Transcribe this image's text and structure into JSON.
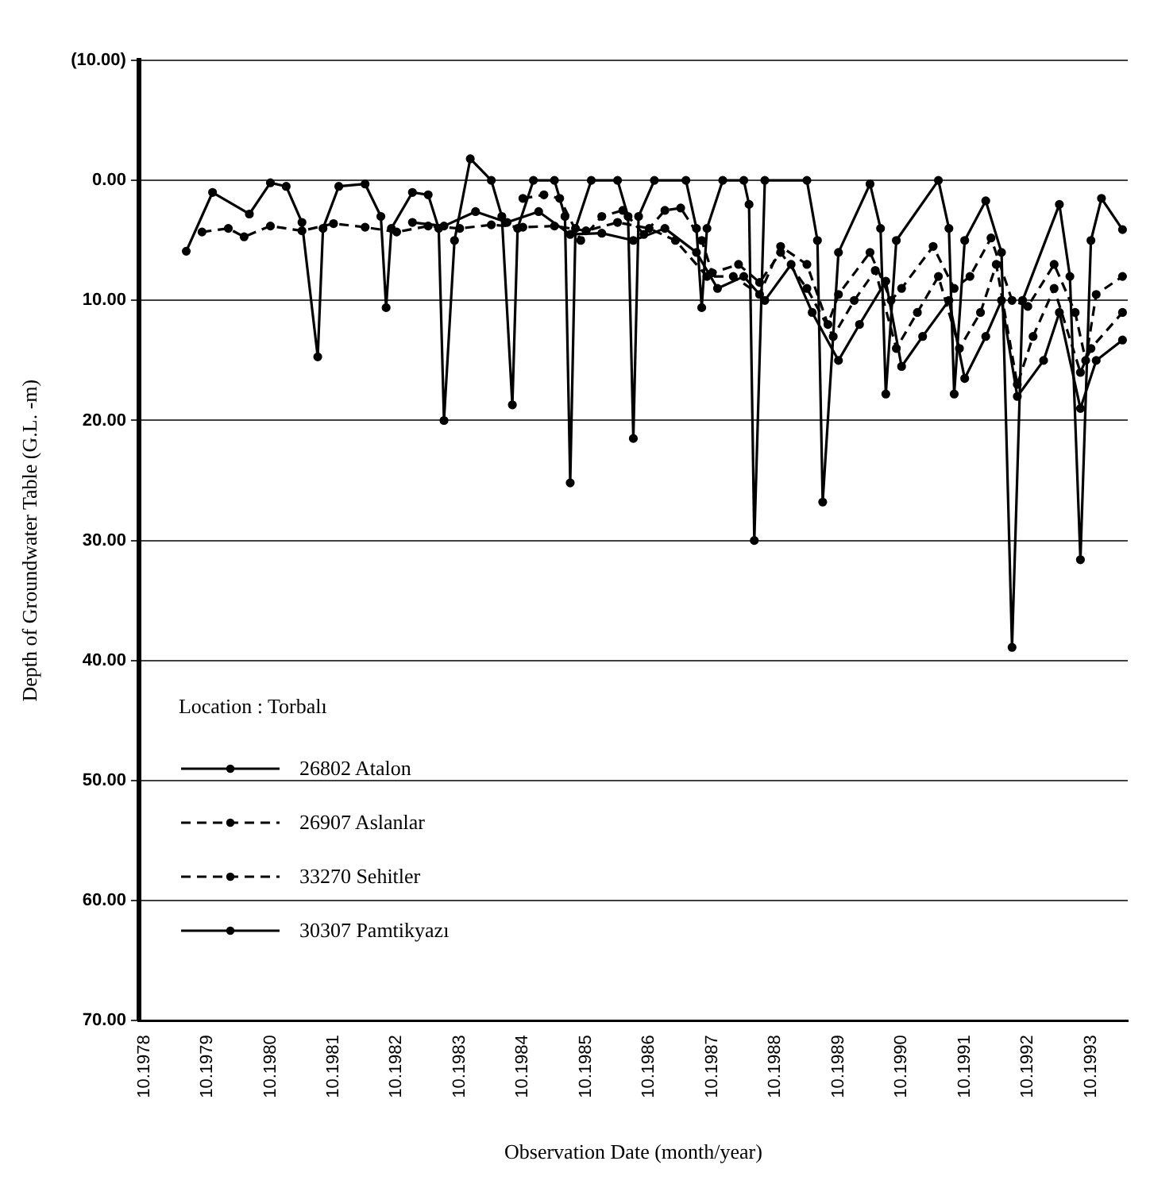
{
  "chart_data": {
    "type": "line",
    "xlabel": "Observation Date (month/year)",
    "ylabel": "Depth of Groundwater Table (G.L. -m)",
    "legend_title": "Location : Torbalı",
    "xlim": [
      "1978-09",
      "1994-05"
    ],
    "xticks": [
      {
        "value": "1978-10",
        "label": "10.1978"
      },
      {
        "value": "1979-10",
        "label": "10.1979"
      },
      {
        "value": "1980-10",
        "label": "10.1980"
      },
      {
        "value": "1981-10",
        "label": "10.1981"
      },
      {
        "value": "1982-10",
        "label": "10.1982"
      },
      {
        "value": "1983-10",
        "label": "10.1983"
      },
      {
        "value": "1984-10",
        "label": "10.1984"
      },
      {
        "value": "1985-10",
        "label": "10.1985"
      },
      {
        "value": "1986-10",
        "label": "10.1986"
      },
      {
        "value": "1987-10",
        "label": "10.1987"
      },
      {
        "value": "1988-10",
        "label": "10.1988"
      },
      {
        "value": "1989-10",
        "label": "10.1989"
      },
      {
        "value": "1990-10",
        "label": "10.1990"
      },
      {
        "value": "1991-10",
        "label": "10.1991"
      },
      {
        "value": "1992-10",
        "label": "10.1992"
      },
      {
        "value": "1993-10",
        "label": "10.1993"
      }
    ],
    "ylim": [
      70,
      -10
    ],
    "yticks": [
      {
        "value": -10,
        "label": "(10.00)"
      },
      {
        "value": 0,
        "label": "0.00"
      },
      {
        "value": 10,
        "label": "10.00"
      },
      {
        "value": 20,
        "label": "20.00"
      },
      {
        "value": 30,
        "label": "30.00"
      },
      {
        "value": 40,
        "label": "40.00"
      },
      {
        "value": 50,
        "label": "50.00"
      },
      {
        "value": 60,
        "label": "60.00"
      },
      {
        "value": 70,
        "label": "70.00"
      }
    ],
    "grid": "y",
    "legend": "bottom left",
    "marker": "circle",
    "series": [
      {
        "name": "26802 Atalon",
        "color": "#000000",
        "line_style": "solid",
        "x": [
          "1979-06",
          "1979-11",
          "1980-06",
          "1980-10",
          "1981-01",
          "1981-04",
          "1981-07",
          "1981-08",
          "1981-11",
          "1982-04",
          "1982-07",
          "1982-08",
          "1982-09",
          "1983-01",
          "1983-04",
          "1983-06",
          "1983-07",
          "1983-09",
          "1983-12",
          "1984-04",
          "1984-06",
          "1984-08",
          "1984-09",
          "1984-12",
          "1985-04",
          "1985-06",
          "1985-07",
          "1985-08",
          "1985-11",
          "1986-04",
          "1986-06",
          "1986-07",
          "1986-08",
          "1986-11",
          "1987-05",
          "1987-07",
          "1987-08",
          "1987-09",
          "1987-12",
          "1988-04",
          "1988-05",
          "1988-06",
          "1988-08",
          "1989-04",
          "1989-06",
          "1989-07",
          "1989-10",
          "1990-04",
          "1990-06",
          "1990-07",
          "1990-09",
          "1991-05",
          "1991-07",
          "1991-08",
          "1991-10",
          "1992-02",
          "1992-05",
          "1992-07",
          "1992-09",
          "1993-04",
          "1993-06",
          "1993-08",
          "1993-10",
          "1993-12",
          "1994-04"
        ],
        "values": [
          5.9,
          1.0,
          2.8,
          0.2,
          0.5,
          3.5,
          14.7,
          4,
          0.5,
          0.3,
          3,
          10.6,
          4,
          1,
          1.2,
          4,
          20,
          5,
          -1.8,
          0,
          3,
          18.7,
          4,
          0,
          0,
          3,
          25.2,
          4,
          0,
          0,
          3,
          21.5,
          3,
          0,
          0,
          4,
          10.6,
          4,
          0,
          0,
          2,
          30,
          0,
          0,
          5,
          26.8,
          6,
          0.3,
          4,
          17.8,
          5,
          0,
          4,
          17.8,
          5,
          1.7,
          6,
          38.9,
          10,
          2,
          8,
          31.6,
          5,
          1.5,
          4.1
        ]
      },
      {
        "name": "26907 Aslanlar",
        "color": "#000000",
        "line_style": "dashed",
        "x": [
          "1979-09",
          "1980-02",
          "1980-05",
          "1980-10",
          "1981-04",
          "1981-10",
          "1982-04",
          "1982-10",
          "1983-04",
          "1983-10",
          "1984-04",
          "1984-10",
          "1985-04",
          "1985-10",
          "1986-04",
          "1986-10",
          "1987-03",
          "1987-09",
          "1988-02",
          "1988-07",
          "1988-11",
          "1989-04",
          "1989-08",
          "1989-10",
          "1990-04",
          "1990-08",
          "1990-10",
          "1991-04",
          "1991-08",
          "1991-11",
          "1992-03",
          "1992-07",
          "1992-10",
          "1993-03",
          "1993-07",
          "1993-09",
          "1993-11",
          "1994-04"
        ],
        "values": [
          4.3,
          4.0,
          4.7,
          3.8,
          4.2,
          3.6,
          3.9,
          4.3,
          3.8,
          4.0,
          3.7,
          3.9,
          3.8,
          4.2,
          3.5,
          4.0,
          5,
          8,
          8,
          9.5,
          5.5,
          7,
          12,
          9.5,
          6,
          10,
          9,
          5.5,
          9,
          8,
          4.8,
          10,
          10.5,
          7,
          11,
          15,
          9.5,
          8
        ]
      },
      {
        "name": "33270 Sehitler",
        "color": "#000000",
        "line_style": "dashed",
        "x": [
          "1984-10",
          "1985-02",
          "1985-05",
          "1985-09",
          "1986-01",
          "1986-05",
          "1986-09",
          "1987-01",
          "1987-04",
          "1987-08",
          "1987-10",
          "1988-03",
          "1988-07",
          "1988-11",
          "1989-04",
          "1989-09",
          "1990-01",
          "1990-05",
          "1990-09",
          "1991-01",
          "1991-05",
          "1991-09",
          "1992-01",
          "1992-04",
          "1992-08",
          "1992-11",
          "1993-03",
          "1993-08",
          "1993-10",
          "1994-04"
        ],
        "values": [
          1.5,
          1.2,
          1.5,
          5,
          3.0,
          2.5,
          4.5,
          2.5,
          2.3,
          5,
          7.7,
          7,
          8.5,
          6,
          9,
          13,
          10,
          7.5,
          14,
          11,
          8,
          14,
          11,
          7,
          17,
          13,
          9,
          16,
          14,
          11
        ]
      },
      {
        "name": "30307 Pamtikyazı",
        "color": "#000000",
        "line_style": "solid",
        "x": [
          "1983-01",
          "1983-07",
          "1984-01",
          "1984-07",
          "1985-01",
          "1985-07",
          "1986-01",
          "1986-07",
          "1987-01",
          "1987-07",
          "1987-11",
          "1988-04",
          "1988-08",
          "1989-01",
          "1989-05",
          "1989-10",
          "1990-02",
          "1990-07",
          "1990-10",
          "1991-02",
          "1991-07",
          "1991-10",
          "1992-02",
          "1992-05",
          "1992-08",
          "1993-01",
          "1993-04",
          "1993-08",
          "1993-11",
          "1994-04"
        ],
        "values": [
          3.5,
          3.8,
          2.6,
          3.5,
          2.6,
          4.5,
          4.4,
          5,
          4,
          6,
          9,
          8,
          10,
          7,
          11,
          15,
          12,
          8.4,
          15.5,
          13,
          10,
          16.5,
          13,
          10,
          18,
          15,
          11,
          19,
          15,
          13.3
        ]
      }
    ]
  }
}
